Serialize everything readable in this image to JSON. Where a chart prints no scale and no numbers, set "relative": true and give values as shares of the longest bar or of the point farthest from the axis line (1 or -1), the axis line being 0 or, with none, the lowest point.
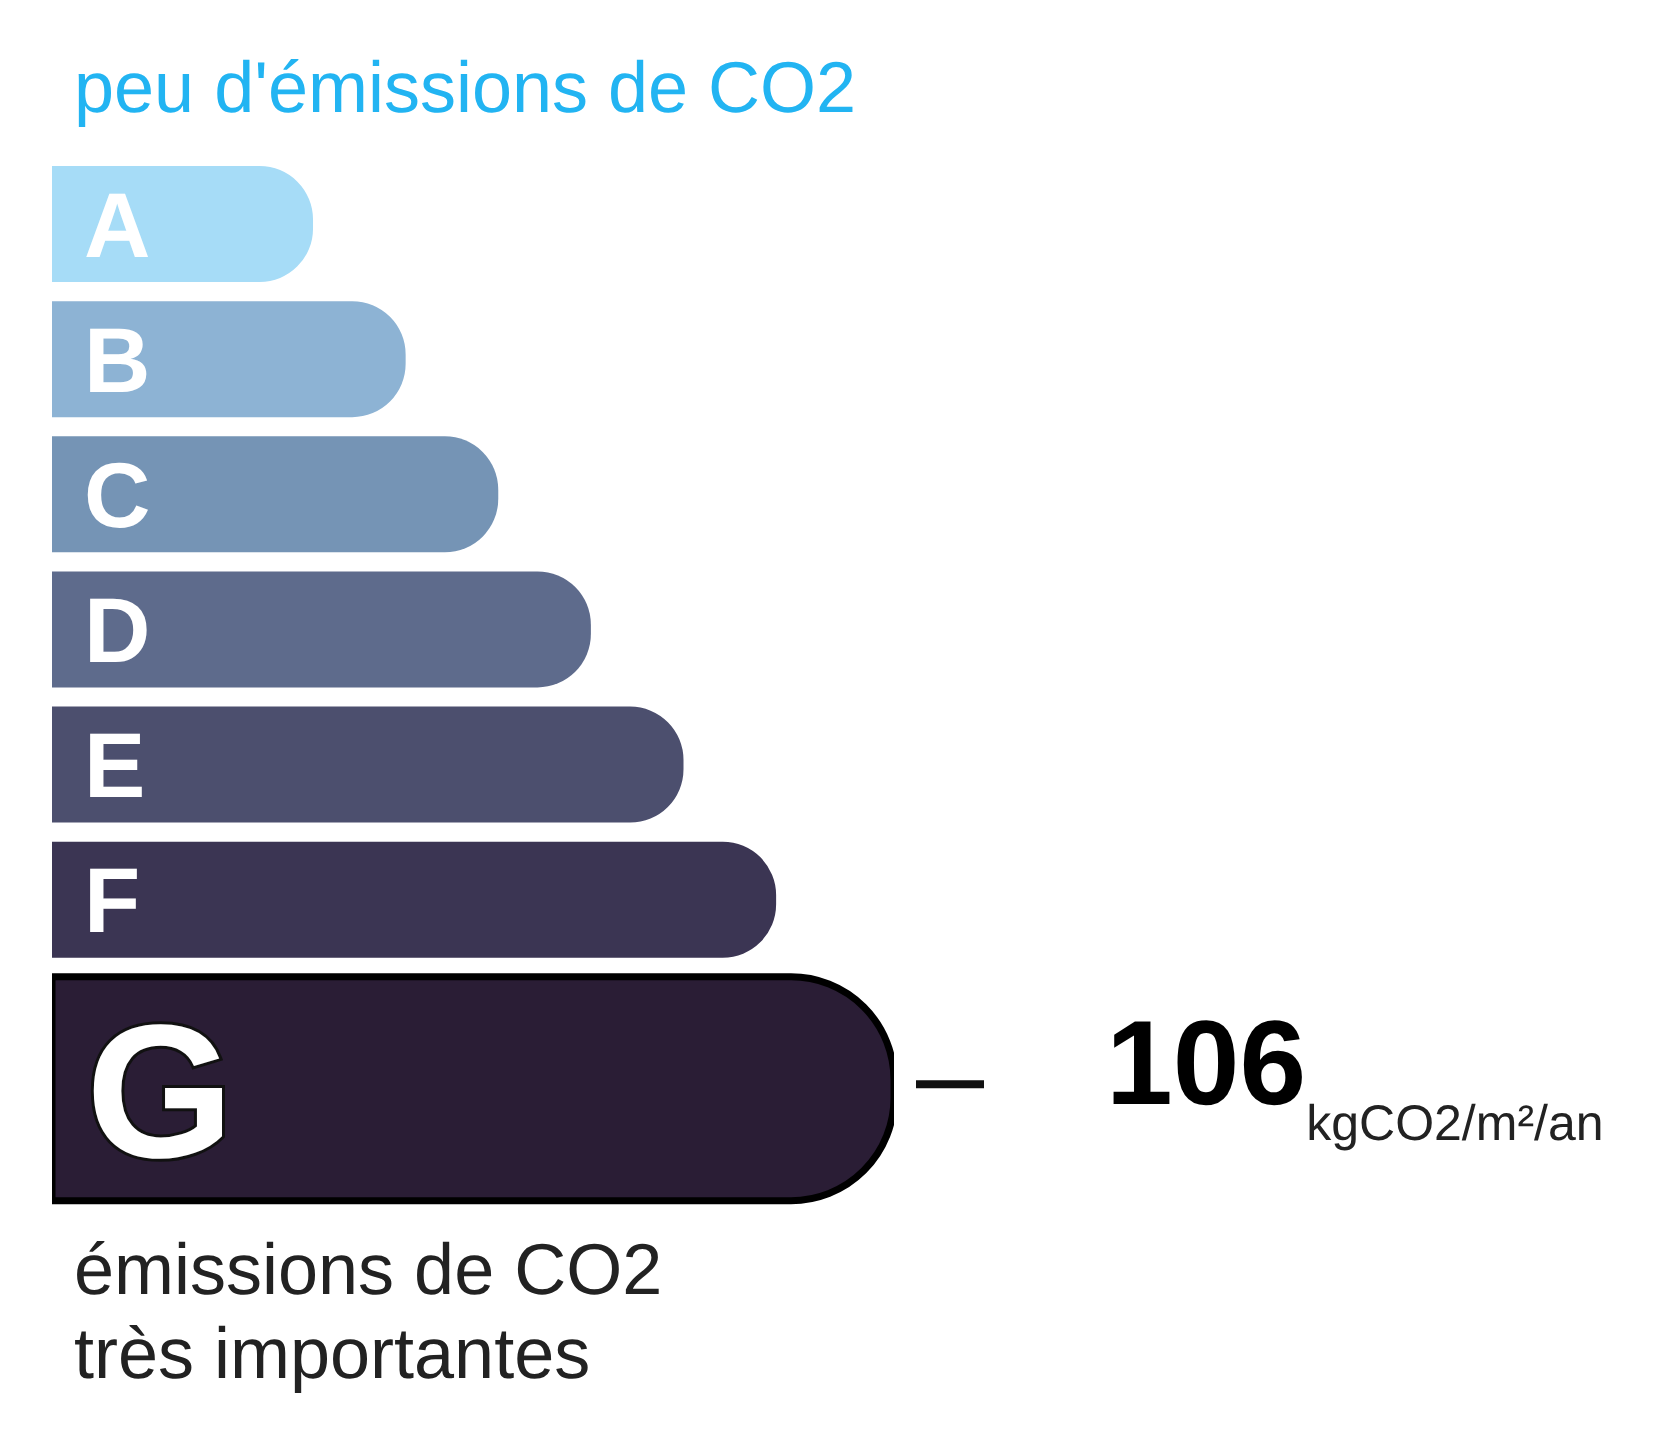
{
  "chart_data": {
    "type": "bar",
    "orientation": "horizontal",
    "relative": true,
    "title": "peu d'émissions de CO2",
    "categories": [
      "A",
      "B",
      "C",
      "D",
      "E",
      "F",
      "G"
    ],
    "values": [
      0.31,
      0.42,
      0.53,
      0.64,
      0.75,
      0.86,
      1
    ],
    "colors": [
      "#a6dcf7",
      "#8db3d4",
      "#7594b5",
      "#5e6b8c",
      "#4c4f6e",
      "#3b3553",
      "#2a1d35"
    ],
    "annotations": [
      "106$_{kgCO2/m²/an}$",
      "émissions de CO2 très importantes"
    ]
  }
}
